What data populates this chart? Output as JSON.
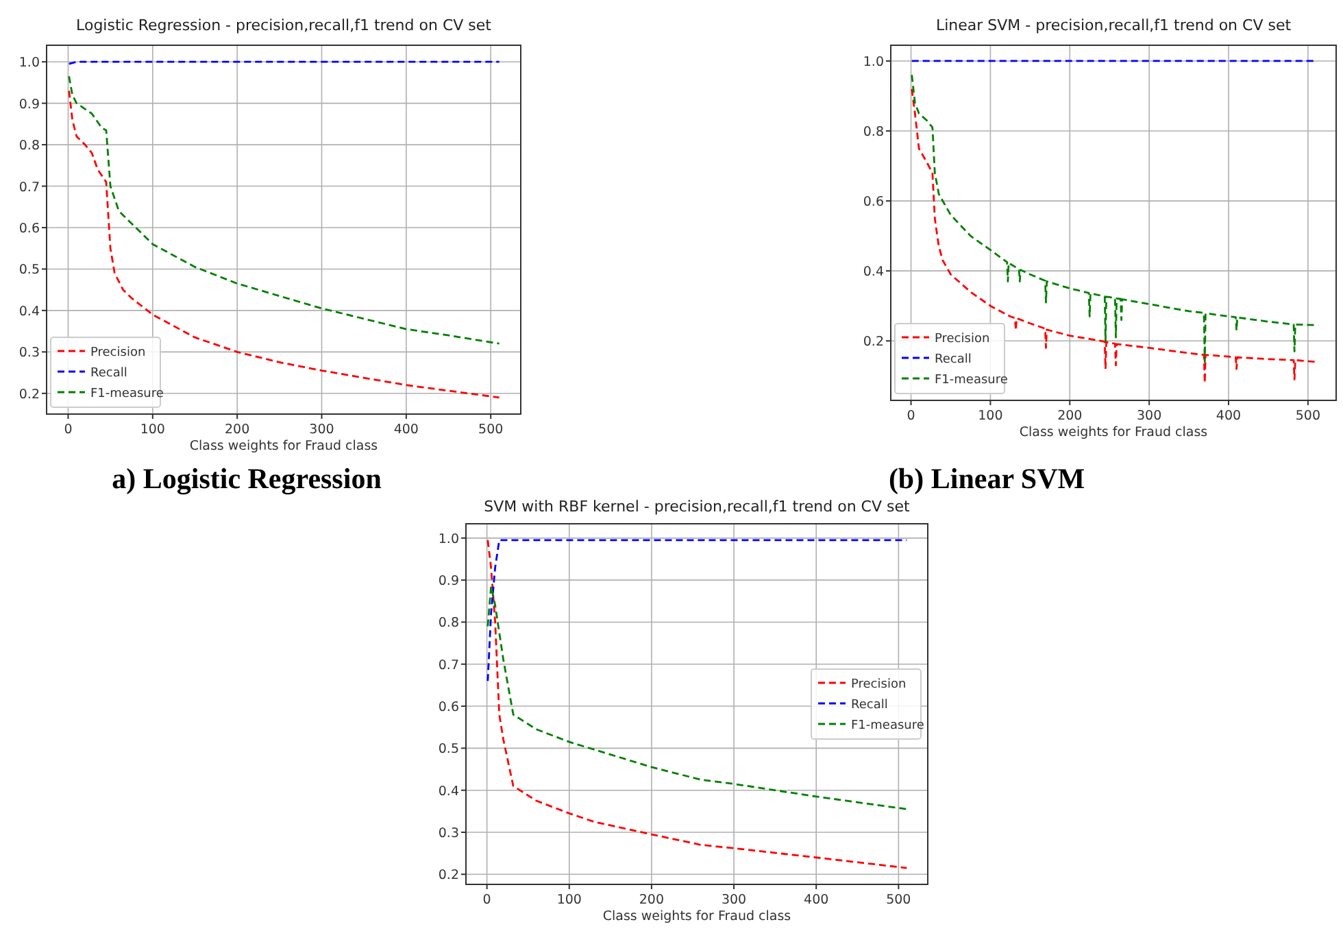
{
  "chart_data": [
    {
      "type": "line",
      "title": "Logistic Regression - precision,recall,f1 trend on CV set",
      "xlabel": "Class weights for Fraud class",
      "annotations": [
        "a) Logistic Regression"
      ],
      "xlim": [
        -25.5,
        535.5
      ],
      "ylim": [
        0.15,
        1.04
      ],
      "xticks": [
        0,
        100,
        200,
        300,
        400,
        500
      ],
      "yticks": [
        {
          "value": 0.2,
          "label": "0.2"
        },
        {
          "value": 0.3,
          "label": "0.3"
        },
        {
          "value": 0.4,
          "label": "0.4"
        },
        {
          "value": 0.5,
          "label": "0.5"
        },
        {
          "value": 0.6,
          "label": "0.6"
        },
        {
          "value": 0.7,
          "label": "0.7"
        },
        {
          "value": 0.8,
          "label": "0.8"
        },
        {
          "value": 0.9,
          "label": "0.9"
        },
        {
          "value": 1,
          "label": "1.0"
        }
      ],
      "grid": true,
      "legend": "bottom left",
      "line_style": "dashed",
      "marker": "none",
      "series": [
        {
          "name": "Precision",
          "color": "#ff0000",
          "x": [
            1,
            5,
            10,
            20,
            28,
            35,
            45,
            50,
            55,
            65,
            75,
            100,
            150,
            200,
            250,
            300,
            400,
            510
          ],
          "values": [
            0.93,
            0.86,
            0.82,
            0.8,
            0.78,
            0.74,
            0.71,
            0.55,
            0.49,
            0.45,
            0.43,
            0.39,
            0.335,
            0.3,
            0.275,
            0.255,
            0.22,
            0.19
          ]
        },
        {
          "name": "Recall",
          "color": "#0000ff",
          "x": [
            1,
            10,
            100,
            200,
            300,
            400,
            510
          ],
          "values": [
            0.995,
            1,
            1,
            1,
            1,
            1,
            1
          ]
        },
        {
          "name": "F1-measure",
          "color": "#008000",
          "x": [
            1,
            5,
            10,
            28,
            40,
            45,
            50,
            60,
            75,
            100,
            150,
            200,
            250,
            300,
            350,
            400,
            450,
            510
          ],
          "values": [
            0.965,
            0.92,
            0.9,
            0.875,
            0.84,
            0.835,
            0.7,
            0.64,
            0.61,
            0.56,
            0.505,
            0.465,
            0.435,
            0.405,
            0.38,
            0.355,
            0.34,
            0.32
          ]
        }
      ]
    },
    {
      "type": "line",
      "title": "Linear SVM - precision,recall,f1 trend on CV set",
      "xlabel": "Class weights for Fraud class",
      "annotations": [
        "(b) Linear SVM"
      ],
      "xlim": [
        -25.5,
        535.5
      ],
      "ylim": [
        0.03,
        1.045
      ],
      "xticks": [
        0,
        100,
        200,
        300,
        400,
        500
      ],
      "yticks": [
        {
          "value": 0.2,
          "label": "0.2"
        },
        {
          "value": 0.4,
          "label": "0.4"
        },
        {
          "value": 0.6,
          "label": "0.6"
        },
        {
          "value": 0.8,
          "label": "0.8"
        },
        {
          "value": 1,
          "label": "1.0"
        }
      ],
      "grid": true,
      "legend": "bottom left",
      "line_style": "dashed",
      "marker": "none",
      "series": [
        {
          "name": "Precision",
          "color": "#ff0000",
          "x": [
            1,
            5,
            10,
            20,
            27,
            30,
            35,
            40,
            50,
            75,
            100,
            125,
            131,
            132,
            133,
            150,
            169,
            170,
            171,
            200,
            244,
            245,
            246,
            250,
            257,
            258,
            259,
            300,
            350,
            369,
            370,
            371,
            400,
            409,
            410,
            411,
            450,
            482,
            483,
            484,
            510
          ],
          "values": [
            0.92,
            0.85,
            0.75,
            0.71,
            0.68,
            0.55,
            0.47,
            0.43,
            0.39,
            0.34,
            0.3,
            0.27,
            0.265,
            0.23,
            0.265,
            0.25,
            0.235,
            0.18,
            0.232,
            0.215,
            0.198,
            0.12,
            0.197,
            0.195,
            0.192,
            0.13,
            0.191,
            0.18,
            0.165,
            0.16,
            0.08,
            0.16,
            0.155,
            0.153,
            0.12,
            0.153,
            0.148,
            0.145,
            0.09,
            0.145,
            0.14
          ]
        },
        {
          "name": "Recall",
          "color": "#0000ff",
          "x": [
            1,
            100,
            200,
            300,
            400,
            510
          ],
          "values": [
            1,
            1,
            1,
            1,
            1,
            1
          ]
        },
        {
          "name": "F1-measure",
          "color": "#008000",
          "x": [
            1,
            5,
            10,
            20,
            27,
            30,
            35,
            50,
            75,
            100,
            121,
            122,
            123,
            125,
            136,
            137,
            138,
            150,
            169,
            170,
            171,
            200,
            224,
            225,
            226,
            244,
            245,
            246,
            250,
            257,
            258,
            259,
            264,
            265,
            266,
            300,
            350,
            369,
            370,
            371,
            400,
            409,
            410,
            411,
            450,
            482,
            483,
            484,
            510
          ],
          "values": [
            0.96,
            0.88,
            0.85,
            0.83,
            0.81,
            0.68,
            0.62,
            0.56,
            0.5,
            0.46,
            0.425,
            0.37,
            0.423,
            0.42,
            0.405,
            0.37,
            0.403,
            0.39,
            0.372,
            0.31,
            0.37,
            0.35,
            0.337,
            0.27,
            0.336,
            0.327,
            0.2,
            0.326,
            0.325,
            0.322,
            0.21,
            0.321,
            0.32,
            0.26,
            0.319,
            0.305,
            0.285,
            0.28,
            0.14,
            0.279,
            0.27,
            0.268,
            0.23,
            0.267,
            0.255,
            0.247,
            0.17,
            0.247,
            0.245
          ]
        }
      ]
    },
    {
      "type": "line",
      "title": "SVM with RBF kernel - precision,recall,f1 trend on CV set",
      "xlabel": "Class weights for Fraud class",
      "xlim": [
        -25.5,
        535.5
      ],
      "ylim": [
        0.176,
        1.034
      ],
      "xticks": [
        0,
        100,
        200,
        300,
        400,
        500
      ],
      "yticks": [
        {
          "value": 0.2,
          "label": "0.2"
        },
        {
          "value": 0.3,
          "label": "0.3"
        },
        {
          "value": 0.4,
          "label": "0.4"
        },
        {
          "value": 0.5,
          "label": "0.5"
        },
        {
          "value": 0.6,
          "label": "0.6"
        },
        {
          "value": 0.7,
          "label": "0.7"
        },
        {
          "value": 0.8,
          "label": "0.8"
        },
        {
          "value": 0.9,
          "label": "0.9"
        },
        {
          "value": 1,
          "label": "1.0"
        }
      ],
      "grid": true,
      "legend": "right",
      "line_style": "dashed",
      "marker": "none",
      "series": [
        {
          "name": "Precision",
          "color": "#ff0000",
          "x": [
            1,
            5,
            10,
            15,
            20,
            32,
            60,
            100,
            130,
            200,
            260,
            300,
            400,
            510
          ],
          "values": [
            0.995,
            0.93,
            0.8,
            0.58,
            0.52,
            0.41,
            0.375,
            0.345,
            0.325,
            0.295,
            0.27,
            0.262,
            0.24,
            0.215
          ]
        },
        {
          "name": "Recall",
          "color": "#0000ff",
          "x": [
            1,
            5,
            10,
            15,
            100,
            200,
            300,
            400,
            510
          ],
          "values": [
            0.66,
            0.82,
            0.93,
            0.995,
            0.995,
            0.995,
            0.995,
            0.995,
            0.995
          ]
        },
        {
          "name": "F1-measure",
          "color": "#008000",
          "x": [
            1,
            5,
            10,
            20,
            32,
            60,
            100,
            150,
            200,
            260,
            300,
            400,
            510
          ],
          "values": [
            0.79,
            0.885,
            0.84,
            0.71,
            0.58,
            0.545,
            0.515,
            0.485,
            0.455,
            0.425,
            0.415,
            0.385,
            0.355
          ]
        }
      ]
    }
  ]
}
